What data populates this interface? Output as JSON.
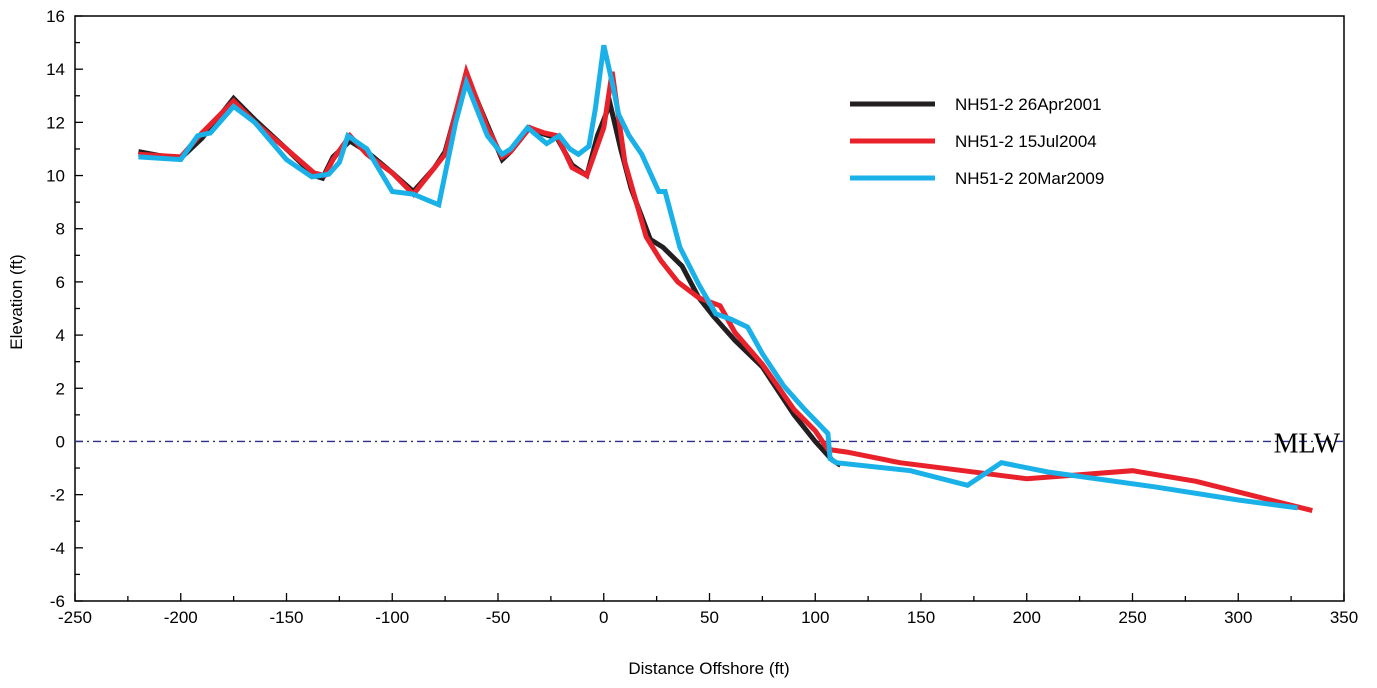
{
  "chart_data": {
    "type": "line",
    "xlabel": "Distance Offshore (ft)",
    "ylabel": "Elevation (ft)",
    "xlim": [
      -250,
      350
    ],
    "ylim": [
      -6,
      16
    ],
    "x_ticks": [
      "-250",
      "-200",
      "-150",
      "-100",
      "-50",
      "0",
      "50",
      "100",
      "150",
      "200",
      "250",
      "300",
      "350"
    ],
    "y_ticks": [
      "-6",
      "-4",
      "-2",
      "0",
      "2",
      "4",
      "6",
      "8",
      "10",
      "12",
      "14",
      "16"
    ],
    "legend_position": "top-right",
    "reference_line": {
      "y": 0,
      "label": "MLW",
      "color": "#2e2e8c"
    },
    "series": [
      {
        "name": "NH51-2 26Apr2001",
        "color": "#231f20",
        "points": [
          [
            -220,
            10.9
          ],
          [
            -210,
            10.75
          ],
          [
            -200,
            10.65
          ],
          [
            -190,
            11.4
          ],
          [
            -175,
            12.9
          ],
          [
            -165,
            12.1
          ],
          [
            -150,
            11.0
          ],
          [
            -137,
            10.0
          ],
          [
            -133,
            9.9
          ],
          [
            -128,
            10.7
          ],
          [
            -120,
            11.3
          ],
          [
            -112,
            10.9
          ],
          [
            -100,
            10.1
          ],
          [
            -90,
            9.4
          ],
          [
            -80,
            10.3
          ],
          [
            -75,
            10.9
          ],
          [
            -65,
            13.8
          ],
          [
            -55,
            11.9
          ],
          [
            -48,
            10.6
          ],
          [
            -44,
            10.9
          ],
          [
            -35,
            11.8
          ],
          [
            -30,
            11.6
          ],
          [
            -22,
            11.4
          ],
          [
            -15,
            10.4
          ],
          [
            -8,
            10.0
          ],
          [
            -3,
            11.5
          ],
          [
            3,
            12.7
          ],
          [
            8,
            11.0
          ],
          [
            13,
            9.5
          ],
          [
            22,
            7.6
          ],
          [
            28,
            7.3
          ],
          [
            37,
            6.6
          ],
          [
            45,
            5.4
          ],
          [
            52,
            4.7
          ],
          [
            62,
            3.8
          ],
          [
            75,
            2.8
          ],
          [
            90,
            1.0
          ],
          [
            100,
            0.0
          ],
          [
            108,
            -0.7
          ],
          [
            112,
            -0.9
          ]
        ]
      },
      {
        "name": "NH51-2 15Jul2004",
        "color": "#e8212a",
        "points": [
          [
            -220,
            10.8
          ],
          [
            -210,
            10.75
          ],
          [
            -200,
            10.7
          ],
          [
            -190,
            11.6
          ],
          [
            -175,
            12.8
          ],
          [
            -165,
            12.0
          ],
          [
            -150,
            11.0
          ],
          [
            -137,
            10.1
          ],
          [
            -132,
            10.0
          ],
          [
            -128,
            10.6
          ],
          [
            -120,
            11.5
          ],
          [
            -112,
            10.8
          ],
          [
            -100,
            10.1
          ],
          [
            -90,
            9.3
          ],
          [
            -80,
            10.3
          ],
          [
            -75,
            10.8
          ],
          [
            -65,
            13.9
          ],
          [
            -55,
            11.8
          ],
          [
            -48,
            10.7
          ],
          [
            -44,
            10.9
          ],
          [
            -35,
            11.8
          ],
          [
            -28,
            11.6
          ],
          [
            -22,
            11.5
          ],
          [
            -15,
            10.3
          ],
          [
            -8,
            10.0
          ],
          [
            0,
            11.8
          ],
          [
            4,
            13.9
          ],
          [
            10,
            10.5
          ],
          [
            20,
            7.7
          ],
          [
            27,
            6.8
          ],
          [
            35,
            6.0
          ],
          [
            45,
            5.4
          ],
          [
            55,
            5.1
          ],
          [
            62,
            4.1
          ],
          [
            75,
            2.9
          ],
          [
            90,
            1.2
          ],
          [
            100,
            0.4
          ],
          [
            106,
            -0.3
          ],
          [
            115,
            -0.4
          ],
          [
            140,
            -0.8
          ],
          [
            170,
            -1.1
          ],
          [
            200,
            -1.4
          ],
          [
            225,
            -1.25
          ],
          [
            250,
            -1.1
          ],
          [
            280,
            -1.5
          ],
          [
            305,
            -2.0
          ],
          [
            335,
            -2.6
          ]
        ]
      },
      {
        "name": "NH51-2 20Mar2009",
        "color": "#1ab1e8",
        "points": [
          [
            -220,
            10.7
          ],
          [
            -210,
            10.65
          ],
          [
            -200,
            10.6
          ],
          [
            -192,
            11.5
          ],
          [
            -186,
            11.6
          ],
          [
            -175,
            12.6
          ],
          [
            -165,
            12.0
          ],
          [
            -150,
            10.6
          ],
          [
            -138,
            9.95
          ],
          [
            -134,
            10.0
          ],
          [
            -130,
            10.05
          ],
          [
            -125,
            10.5
          ],
          [
            -121,
            11.5
          ],
          [
            -112,
            11.0
          ],
          [
            -100,
            9.4
          ],
          [
            -90,
            9.3
          ],
          [
            -78,
            8.9
          ],
          [
            -70,
            12.0
          ],
          [
            -65,
            13.5
          ],
          [
            -60,
            12.5
          ],
          [
            -55,
            11.5
          ],
          [
            -48,
            10.8
          ],
          [
            -44,
            11.0
          ],
          [
            -36,
            11.8
          ],
          [
            -27,
            11.2
          ],
          [
            -21,
            11.5
          ],
          [
            -16,
            11.0
          ],
          [
            -12,
            10.8
          ],
          [
            -7,
            11.1
          ],
          [
            -4,
            12.5
          ],
          [
            0,
            14.9
          ],
          [
            4,
            13.5
          ],
          [
            7,
            12.3
          ],
          [
            12,
            11.5
          ],
          [
            18,
            10.8
          ],
          [
            26,
            9.4
          ],
          [
            29,
            9.4
          ],
          [
            36,
            7.3
          ],
          [
            45,
            5.9
          ],
          [
            53,
            4.8
          ],
          [
            60,
            4.6
          ],
          [
            68,
            4.3
          ],
          [
            75,
            3.3
          ],
          [
            85,
            2.1
          ],
          [
            95,
            1.2
          ],
          [
            106,
            0.3
          ],
          [
            107,
            -0.65
          ],
          [
            110,
            -0.8
          ],
          [
            145,
            -1.1
          ],
          [
            172,
            -1.65
          ],
          [
            188,
            -0.8
          ],
          [
            210,
            -1.15
          ],
          [
            260,
            -1.7
          ],
          [
            300,
            -2.2
          ],
          [
            328,
            -2.5
          ]
        ]
      }
    ]
  }
}
